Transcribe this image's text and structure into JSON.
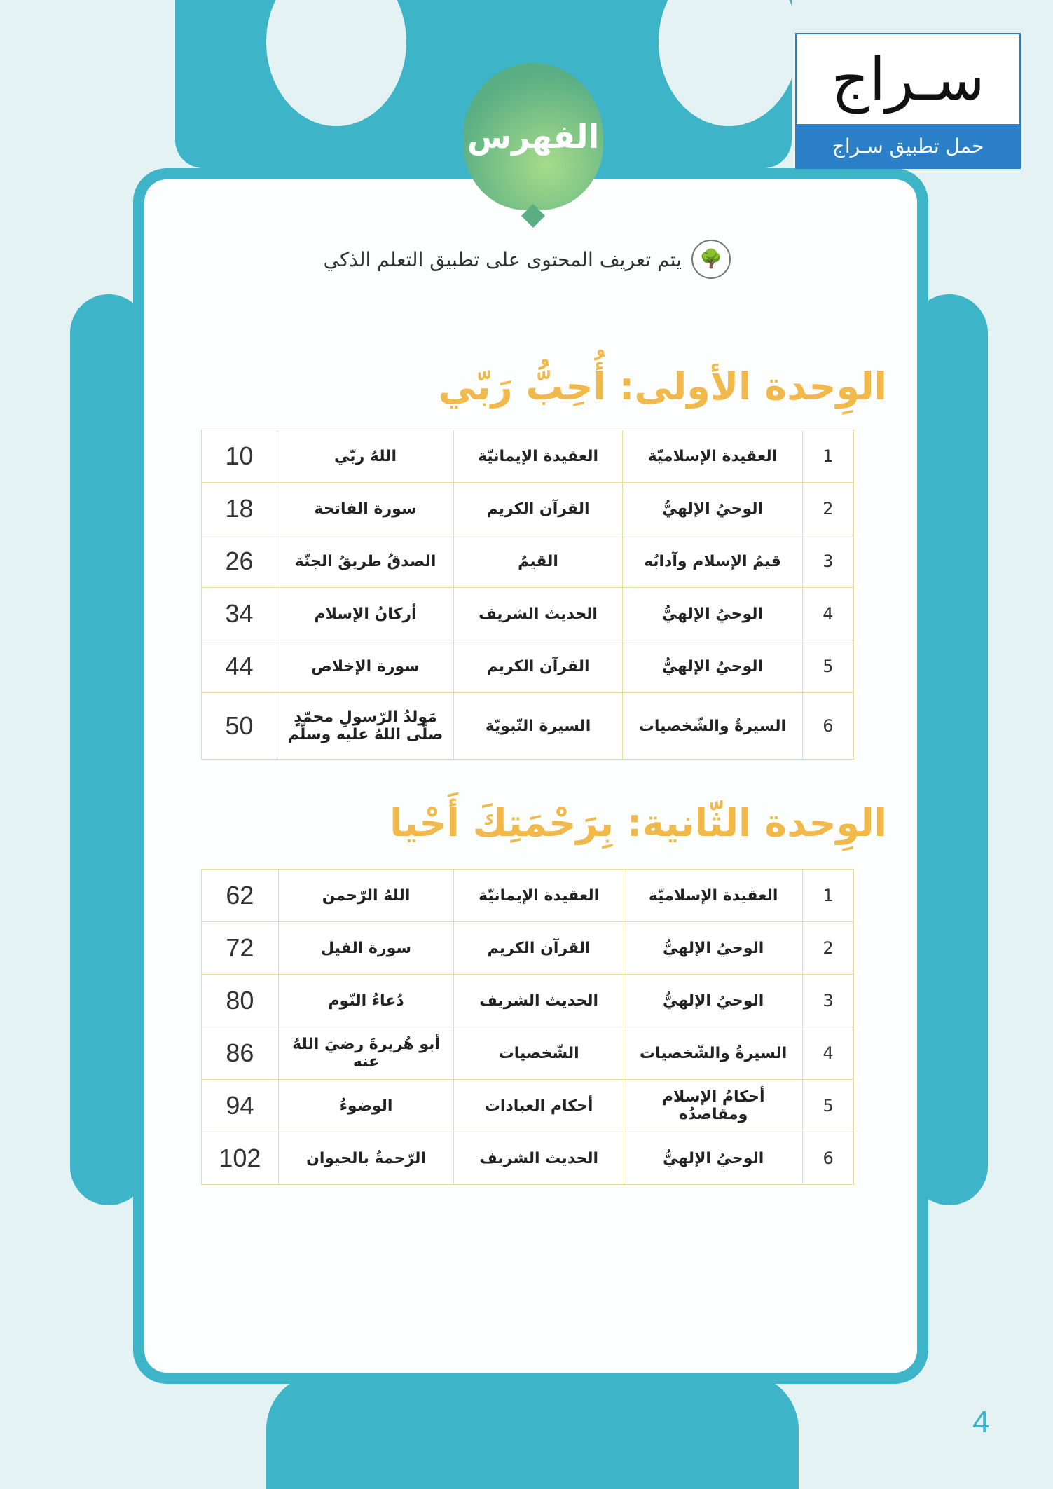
{
  "logo": {
    "word": "سـراج",
    "tagline": "حمل تطبيق سـراج"
  },
  "badge": "الفهرس",
  "subtitle": "يتم تعريف المحتوى على تطبيق التعلم الذكي",
  "units": [
    {
      "title": "الوِحدة الأولى: أُحِبُّ رَبّي",
      "rows": [
        [
          "1",
          "العقيدة الإسلاميّة",
          "العقيدة الإيمانيّة",
          "اللهُ ربّي",
          "10"
        ],
        [
          "2",
          "الوحيُ الإلهيُّ",
          "القرآن الكريم",
          "سورة الفاتحة",
          "18"
        ],
        [
          "3",
          "قيمُ الإسلام وآدابُه",
          "القيمُ",
          "الصدقُ طريقُ الجنّة",
          "26"
        ],
        [
          "4",
          "الوحيُ الإلهيُّ",
          "الحديث الشريف",
          "أركانُ الإسلام",
          "34"
        ],
        [
          "5",
          "الوحيُ الإلهيُّ",
          "القرآن الكريم",
          "سورة الإخلاص",
          "44"
        ],
        [
          "6",
          "السيرةُ والشّخصيات",
          "السيرة النّبويّة",
          "مَولدُ الرّسولِ محمّدٍ صلّى اللهُ عليه وسلّم",
          "50"
        ]
      ]
    },
    {
      "title": "الوِحدة الثّانية: بِرَحْمَتِكَ أَحْيا",
      "rows": [
        [
          "1",
          "العقيدة الإسلاميّة",
          "العقيدة الإيمانيّة",
          "اللهُ الرّحمن",
          "62"
        ],
        [
          "2",
          "الوحيُ الإلهيُّ",
          "القرآن الكريم",
          "سورة الفيل",
          "72"
        ],
        [
          "3",
          "الوحيُ الإلهيُّ",
          "الحديث الشريف",
          "دُعاءُ النّوم",
          "80"
        ],
        [
          "4",
          "السيرةُ والشّخصيات",
          "الشّخصيات",
          "أبو هُريرةَ رضيَ اللهُ عنه",
          "86"
        ],
        [
          "5",
          "أحكامُ الإسلام ومقاصدُه",
          "أحكام العبادات",
          "الوضوءُ",
          "94"
        ],
        [
          "6",
          "الوحيُ الإلهيُّ",
          "الحديث الشريف",
          "الرّحمةُ بالحيوان",
          "102"
        ]
      ]
    }
  ],
  "page_number": "4",
  "colors": {
    "teal": "#3db4c8",
    "heading": "#f1b94c",
    "logo_blue": "#2a7fc6",
    "badge_green": "#59ae84"
  }
}
